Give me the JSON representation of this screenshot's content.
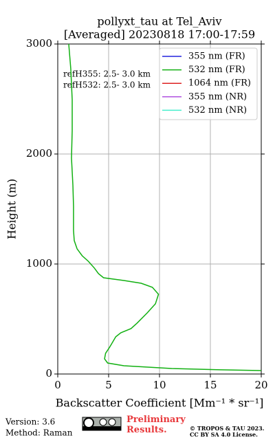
{
  "chart_data": {
    "type": "line",
    "title": "pollyxt_tau at Tel_Aviv",
    "subtitle": "[Averaged] 20230818 17:00-17:59",
    "x_label": "Backscatter Coefficient [Mm⁻¹ * sr⁻¹]",
    "y_label": "Height (m)",
    "annotations": [
      "refH355:  2.5- 3.0 km",
      "refH532:  2.5- 3.0 km"
    ],
    "xlim": [
      0,
      20
    ],
    "xticks": [
      0,
      5,
      10,
      15,
      20
    ],
    "ylim": [
      0,
      3000
    ],
    "yticks": [
      0,
      1000,
      2000,
      3000
    ],
    "grid": true,
    "legend": "upper right",
    "series": [
      {
        "name": "355 nm (FR)",
        "color": "#2222dd",
        "x": [],
        "values": []
      },
      {
        "name": "532 nm (FR)",
        "color": "#11b011",
        "x": [
          1.08,
          1.28,
          1.42,
          1.42,
          1.35,
          1.49,
          1.55,
          1.55,
          1.62,
          1.9,
          2.4,
          3.0,
          3.6,
          4.0,
          4.5,
          6.5,
          8.2,
          9.3,
          9.9,
          9.6,
          8.8,
          7.8,
          7.2,
          6.2,
          5.7,
          5.3,
          5.1,
          4.7,
          4.6,
          4.9,
          6.5,
          11.2,
          16,
          20
        ],
        "values": [
          3000,
          2775,
          2494,
          2213,
          1963,
          1713,
          1525,
          1306,
          1213,
          1138,
          1075,
          1025,
          963,
          913,
          875,
          850,
          825,
          788,
          725,
          638,
          556,
          463,
          413,
          375,
          338,
          275,
          244,
          188,
          138,
          100,
          75,
          50,
          38,
          31
        ]
      },
      {
        "name": "1064 nm (FR)",
        "color": "#dd2222",
        "x": [],
        "values": []
      },
      {
        "name": "355 nm (NR)",
        "color": "#b050e0",
        "x": [],
        "values": []
      },
      {
        "name": "532 nm (NR)",
        "color": "#44eecc",
        "x": [],
        "values": []
      }
    ]
  },
  "footer": {
    "version": "Version: 3.6",
    "method": "Method: Raman",
    "notice": "Preliminary Results.",
    "copyright": "© TROPOS & TAU 2023.",
    "license": "CC BY SA 4.0 License."
  }
}
